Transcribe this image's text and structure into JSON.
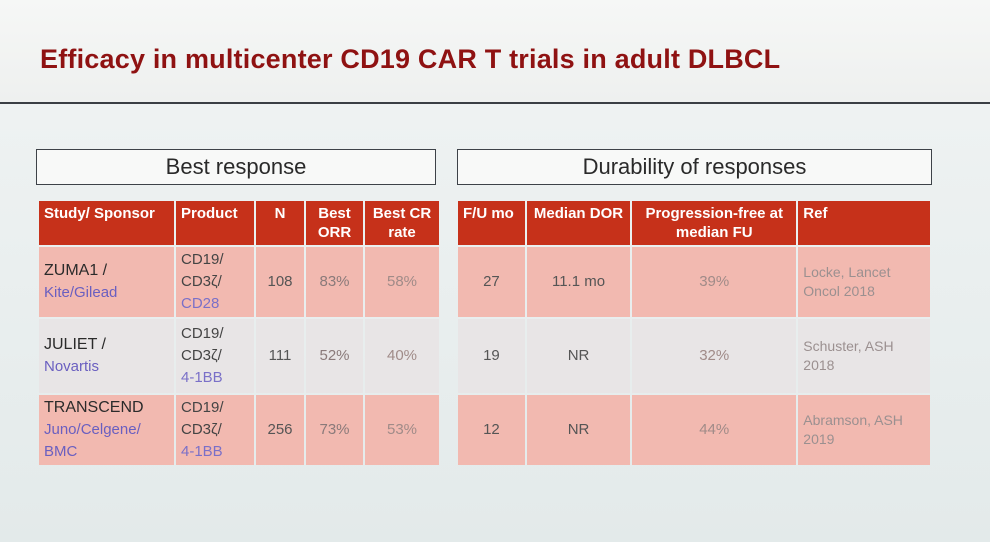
{
  "title": "Efficacy in multicenter CD19 CAR T trials in adult DLBCL",
  "sections": {
    "left": "Best response",
    "right": "Durability of responses"
  },
  "left_table": {
    "headers": [
      "Study/ Sponsor",
      "Product",
      "N",
      "Best ORR",
      "Best CR rate"
    ],
    "rows": [
      {
        "study": "ZUMA1 /",
        "sponsor": "Kite/Gilead",
        "product_1": "CD19/",
        "product_2": "CD3ζ/",
        "product_3": "CD28",
        "n": "108",
        "orr": "83%",
        "cr": "58%"
      },
      {
        "study": "JULIET /",
        "sponsor": "Novartis",
        "product_1": "CD19/",
        "product_2": "CD3ζ/",
        "product_3": "4-1BB",
        "n": "111",
        "orr": "52%",
        "cr": "40%"
      },
      {
        "study": "TRANSCEND",
        "sponsor": "Juno/Celgene/ BMC",
        "product_1": "CD19/",
        "product_2": "CD3ζ/",
        "product_3": "4-1BB",
        "n": "256",
        "orr": "73%",
        "cr": "53%"
      }
    ]
  },
  "right_table": {
    "headers": [
      "F/U mo",
      "Median DOR",
      "Progression-free at median FU",
      "Ref"
    ],
    "rows": [
      {
        "fu": "27",
        "dor": "11.1 mo",
        "pfs": "39%",
        "ref": "Locke, Lancet Oncol 2018"
      },
      {
        "fu": "19",
        "dor": "NR",
        "pfs": "32%",
        "ref": "Schuster, ASH 2018"
      },
      {
        "fu": "12",
        "dor": "NR",
        "pfs": "44%",
        "ref": "Abramson, ASH 2019"
      }
    ]
  }
}
